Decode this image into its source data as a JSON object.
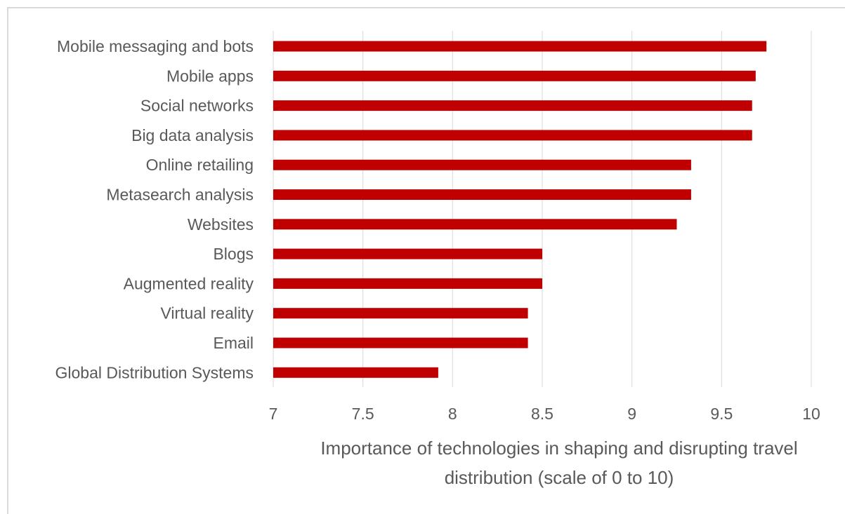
{
  "chart_data": {
    "type": "bar",
    "orientation": "horizontal",
    "categories": [
      "Mobile messaging and bots",
      "Mobile apps",
      "Social networks",
      "Big data analysis",
      "Online retailing",
      "Metasearch analysis",
      "Websites",
      "Blogs",
      "Augmented reality",
      "Virtual reality",
      "Email",
      "Global Distribution Systems"
    ],
    "values": [
      9.75,
      9.69,
      9.67,
      9.67,
      9.33,
      9.33,
      9.25,
      8.5,
      8.5,
      8.42,
      8.42,
      7.92
    ],
    "xlabel_lines": [
      "Importance of technologies in shaping and disrupting travel",
      "distribution (scale of 0 to 10)"
    ],
    "ylabel": "",
    "title": "",
    "xlim": [
      7,
      10
    ],
    "ticks": [
      7,
      7.5,
      8,
      8.5,
      9,
      9.5,
      10
    ],
    "tick_labels": [
      "7",
      "7.5",
      "8",
      "8.5",
      "9",
      "9.5",
      "10"
    ],
    "grid": true,
    "legend": "none",
    "bar_color": "#c00000",
    "gridline_color": "#d9d9d9",
    "text_color": "#595959"
  }
}
